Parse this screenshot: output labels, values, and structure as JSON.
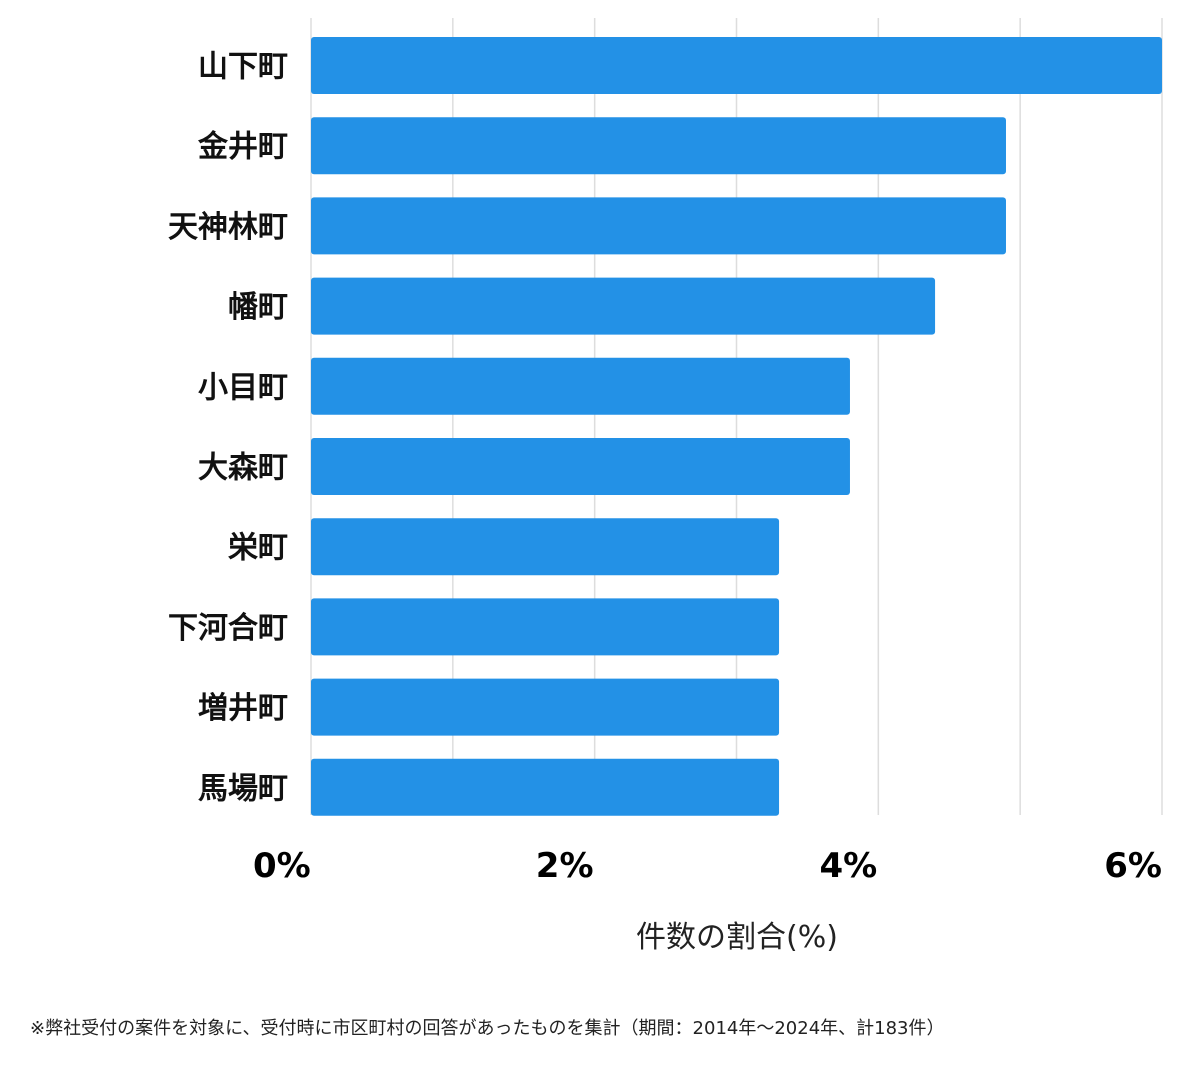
{
  "chart_data": {
    "type": "bar",
    "orientation": "horizontal",
    "categories": [
      "山下町",
      "金井町",
      "天神林町",
      "幡町",
      "小目町",
      "大森町",
      "栄町",
      "下河合町",
      "増井町",
      "馬場町"
    ],
    "values": [
      6.0,
      4.9,
      4.9,
      4.4,
      3.8,
      3.8,
      3.3,
      3.3,
      3.3,
      3.3
    ],
    "xlim": [
      0,
      6
    ],
    "xticks": [
      0,
      2,
      4,
      6
    ],
    "tick_labels": [
      "0%",
      "2%",
      "4%",
      "6%"
    ],
    "xlabel": "件数の割合(%)",
    "grid": true,
    "bar_color": "#2391e6",
    "grid_color": "#dddddd"
  },
  "footnote": "※弊社受付の案件を対象に、受付時に市区町村の回答があったものを集計（期間：2014年～2024年、計183件）"
}
